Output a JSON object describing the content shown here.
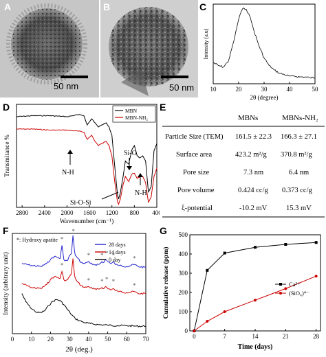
{
  "panels": {
    "A": {
      "letter": "A",
      "scale_label": "50 nm"
    },
    "B": {
      "letter": "B",
      "scale_label": "50 nm"
    },
    "C": {
      "letter": "C"
    },
    "D": {
      "letter": "D"
    },
    "E": {
      "letter": "E"
    },
    "F": {
      "letter": "F"
    },
    "G": {
      "letter": "G"
    }
  },
  "chart_data": [
    {
      "id": "C",
      "type": "line",
      "xlabel": "2θ (degree)",
      "ylabel": "Intensity (a.u)",
      "xlim": [
        10,
        50
      ],
      "xticks": [
        10,
        20,
        30,
        40,
        50
      ],
      "series": [
        {
          "x": [
            10,
            12,
            14,
            16,
            18,
            20,
            21,
            22,
            23,
            24,
            25,
            26,
            28,
            30,
            32,
            34,
            36,
            38,
            40,
            42,
            44,
            46,
            48,
            50
          ],
          "values": [
            0.28,
            0.24,
            0.22,
            0.3,
            0.55,
            0.85,
            0.95,
            1.0,
            0.98,
            0.92,
            0.82,
            0.7,
            0.5,
            0.34,
            0.24,
            0.18,
            0.14,
            0.12,
            0.1,
            0.1,
            0.09,
            0.09,
            0.08,
            0.08
          ]
        }
      ]
    },
    {
      "id": "D",
      "type": "line",
      "xlabel": "Wavenumber (cm⁻¹)",
      "ylabel": "Transmitance %",
      "xlim": [
        2900,
        400
      ],
      "xticks": [
        2800,
        2400,
        2000,
        1600,
        1200,
        800,
        400
      ],
      "legend": [
        "MBN",
        "MBN-NH₂"
      ],
      "annotations": [
        "N-H",
        "Si-O",
        "N-H",
        "Si-O-Si"
      ],
      "series": [
        {
          "name": "MBN",
          "color": "#000000",
          "x": [
            2900,
            2600,
            2300,
            2000,
            1800,
            1700,
            1640,
            1560,
            1500,
            1440,
            1380,
            1300,
            1250,
            1200,
            1150,
            1100,
            1080,
            1050,
            1000,
            960,
            900,
            850,
            800,
            750,
            700,
            650,
            600,
            550,
            500,
            450,
            400
          ],
          "values": [
            0.88,
            0.89,
            0.89,
            0.88,
            0.9,
            0.89,
            0.8,
            0.86,
            0.82,
            0.78,
            0.8,
            0.82,
            0.78,
            0.7,
            0.4,
            0.12,
            0.08,
            0.14,
            0.3,
            0.45,
            0.42,
            0.55,
            0.6,
            0.5,
            0.48,
            0.5,
            0.45,
            0.15,
            0.2,
            0.55,
            0.62
          ]
        },
        {
          "name": "MBN-NH₂",
          "color": "#cc0000",
          "x": [
            2900,
            2600,
            2300,
            2000,
            1800,
            1700,
            1640,
            1560,
            1500,
            1440,
            1380,
            1300,
            1250,
            1200,
            1150,
            1100,
            1080,
            1050,
            1000,
            960,
            900,
            850,
            800,
            750,
            700,
            650,
            600,
            550,
            500,
            450,
            400
          ],
          "values": [
            0.76,
            0.76,
            0.75,
            0.75,
            0.74,
            0.73,
            0.66,
            0.7,
            0.64,
            0.6,
            0.62,
            0.64,
            0.6,
            0.5,
            0.25,
            0.05,
            0.03,
            0.08,
            0.22,
            0.3,
            0.25,
            0.32,
            0.33,
            0.28,
            0.3,
            0.3,
            0.24,
            0.05,
            0.1,
            0.3,
            0.38
          ]
        }
      ]
    },
    {
      "id": "E",
      "type": "table",
      "columns": [
        "",
        "MBNs",
        "MBNs-NH₂"
      ],
      "rows": [
        [
          "Particle Size (TEM)",
          "161.5 ± 22.3",
          "166.3 ± 27.1"
        ],
        [
          "Surface area",
          "423.2 m²/g",
          "370.8 m²/g"
        ],
        [
          "Pore size",
          "7.3 nm",
          "6.4 nm"
        ],
        [
          "Pore volume",
          "0.424 cc/g",
          "0.373 cc/g"
        ],
        [
          "ξ-potential",
          "-10.2 mV",
          "15.3 mV"
        ]
      ]
    },
    {
      "id": "F",
      "type": "line",
      "xlabel": "2θ (deg.)",
      "ylabel": "Intensity (arbitrary unit)",
      "xlim": [
        0,
        70
      ],
      "xticks": [
        0,
        10,
        20,
        30,
        40,
        50,
        60,
        70
      ],
      "annotation": "*: Hydroxy apatite",
      "legend": [
        "28 days",
        "14 days",
        "0 day"
      ],
      "series": [
        {
          "name": "28 days",
          "color": "#2323cc",
          "x": [
            5,
            10,
            15,
            18,
            20,
            22,
            24,
            25,
            26,
            27,
            28,
            29,
            30,
            31,
            31.8,
            32.5,
            33,
            34,
            36,
            38,
            40,
            42,
            44,
            46,
            47,
            48,
            49,
            50,
            52,
            53,
            54,
            56,
            60,
            64,
            66,
            70
          ],
          "values": [
            0.7,
            0.68,
            0.67,
            0.7,
            0.74,
            0.77,
            0.76,
            0.75,
            0.88,
            0.74,
            0.73,
            0.73,
            0.78,
            0.8,
            0.98,
            0.84,
            0.78,
            0.76,
            0.71,
            0.7,
            0.72,
            0.69,
            0.68,
            0.7,
            0.72,
            0.71,
            0.74,
            0.72,
            0.7,
            0.72,
            0.69,
            0.68,
            0.67,
            0.69,
            0.67,
            0.66
          ]
        },
        {
          "name": "14 days",
          "color": "#cc0000",
          "x": [
            5,
            10,
            15,
            18,
            20,
            22,
            24,
            25,
            26,
            27,
            28,
            29,
            30,
            31,
            31.8,
            32.5,
            33,
            34,
            36,
            38,
            40,
            42,
            44,
            46,
            47,
            48,
            49,
            50,
            52,
            53,
            54,
            56,
            60,
            64,
            66,
            70
          ],
          "values": [
            0.5,
            0.46,
            0.45,
            0.49,
            0.54,
            0.57,
            0.56,
            0.55,
            0.62,
            0.54,
            0.53,
            0.54,
            0.57,
            0.6,
            0.75,
            0.6,
            0.55,
            0.52,
            0.48,
            0.46,
            0.47,
            0.45,
            0.44,
            0.45,
            0.46,
            0.45,
            0.47,
            0.45,
            0.44,
            0.45,
            0.43,
            0.42,
            0.41,
            0.42,
            0.4,
            0.4
          ]
        },
        {
          "name": "0 day",
          "color": "#000000",
          "x": [
            5,
            7,
            10,
            13,
            15,
            17,
            19,
            21,
            23,
            25,
            27,
            29,
            31,
            33,
            35,
            38,
            41,
            45,
            50,
            55,
            60,
            65,
            70
          ],
          "values": [
            0.4,
            0.32,
            0.25,
            0.21,
            0.21,
            0.23,
            0.28,
            0.32,
            0.34,
            0.33,
            0.29,
            0.24,
            0.19,
            0.15,
            0.13,
            0.11,
            0.1,
            0.09,
            0.085,
            0.08,
            0.08,
            0.075,
            0.075
          ]
        }
      ]
    },
    {
      "id": "G",
      "type": "line",
      "xlabel": "Time (days)",
      "ylabel": "Cumulative release (ppm)",
      "xlim": [
        0,
        28
      ],
      "ylim": [
        0,
        500
      ],
      "xticks": [
        0,
        7,
        14,
        21,
        28
      ],
      "yticks": [
        0,
        100,
        200,
        300,
        400,
        500
      ],
      "legend": [
        "Ca²⁺",
        "(SiO₄)⁴⁻"
      ],
      "series": [
        {
          "name": "Ca²⁺",
          "color": "#000000",
          "marker": "square",
          "x": [
            0,
            3,
            7,
            14,
            21,
            28
          ],
          "values": [
            0,
            315,
            405,
            435,
            450,
            460
          ]
        },
        {
          "name": "(SiO₄)⁴⁻",
          "color": "#cc0000",
          "marker": "circle",
          "x": [
            0,
            3,
            7,
            14,
            21,
            28
          ],
          "values": [
            0,
            50,
            100,
            160,
            220,
            285
          ]
        }
      ]
    }
  ]
}
